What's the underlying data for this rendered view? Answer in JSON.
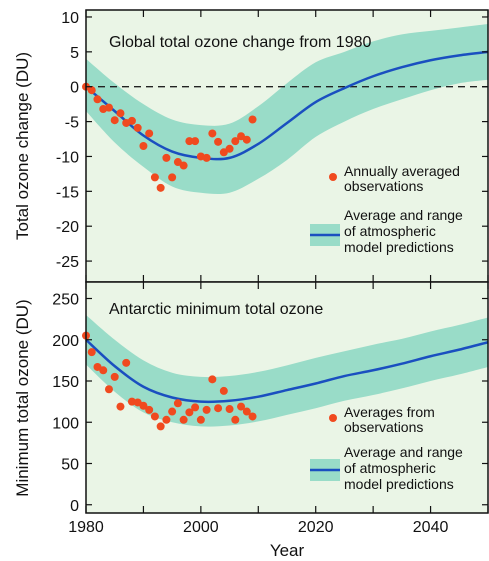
{
  "colors": {
    "background": "#eaf5e6",
    "band": "#99dcc8",
    "model_line": "#1a4fc0",
    "observations": "#f04a1f",
    "zero_line": "#222222"
  },
  "shared_axis": {
    "xlabel": "Year",
    "xlim": [
      1980,
      2050
    ],
    "xticks": [
      "1980",
      "2000",
      "2020",
      "2040"
    ]
  },
  "chart_data": [
    {
      "type": "scatter",
      "title": "Global total ozone change from 1980",
      "ylabel": "Total ozone change (DU)",
      "ylim": [
        -28,
        11
      ],
      "yticks": [
        "10",
        "5",
        "0",
        "-5",
        "-10",
        "-15",
        "-20",
        "-25"
      ],
      "zero_line": true,
      "legend": {
        "observations_label_line1": "Annually averaged",
        "observations_label_line2": "observations",
        "model_label_line1": "Average and range",
        "model_label_line2": "of atmospheric",
        "model_label_line3": "model predictions"
      },
      "series": [
        {
          "name": "Annually averaged observations",
          "x": [
            1980,
            1981,
            1982,
            1983,
            1984,
            1985,
            1986,
            1987,
            1988,
            1989,
            1990,
            1991,
            1992,
            1993,
            1994,
            1995,
            1996,
            1997,
            1998,
            1999,
            2000,
            2001,
            2002,
            2003,
            2004,
            2005,
            2006,
            2007,
            2008,
            2009
          ],
          "y": [
            0,
            -0.5,
            -1.8,
            -3.2,
            -3,
            -4.8,
            -3.8,
            -5.2,
            -4.9,
            -5.9,
            -8.5,
            -6.7,
            -13,
            -14.5,
            -10.2,
            -13,
            -10.8,
            -11.3,
            -7.8,
            -7.8,
            -10,
            -10.2,
            -6.7,
            -7.9,
            -9.4,
            -8.9,
            -7.8,
            -7.1,
            -7.6,
            -4.7
          ]
        },
        {
          "name": "Average and range of atmospheric model predictions",
          "x": [
            1980,
            1985,
            1990,
            1995,
            2000,
            2005,
            2010,
            2015,
            2020,
            2025,
            2030,
            2035,
            2040,
            2045,
            2050
          ],
          "y": [
            0,
            -3.5,
            -7,
            -9.3,
            -10.2,
            -10.2,
            -8.2,
            -5.2,
            -2.2,
            -0.2,
            1.5,
            2.8,
            3.8,
            4.5,
            5
          ],
          "upper": [
            4,
            0.5,
            -2.5,
            -4.7,
            -5.5,
            -5.3,
            -2.8,
            0.5,
            3.5,
            5,
            6.5,
            7.5,
            8,
            8.5,
            9
          ],
          "lower": [
            -3.5,
            -8,
            -11.5,
            -14.3,
            -15.2,
            -15.2,
            -13.2,
            -10.5,
            -7.2,
            -5,
            -3.2,
            -1.8,
            -0.5,
            0.5,
            1
          ]
        }
      ]
    },
    {
      "type": "scatter",
      "title": "Antarctic minimum total ozone",
      "ylabel": "Minimum total ozone (DU)",
      "ylim": [
        -10,
        270
      ],
      "yticks": [
        "250",
        "200",
        "150",
        "100",
        "50",
        "0"
      ],
      "zero_line": false,
      "legend": {
        "observations_label_line1": "Averages from",
        "observations_label_line2": "observations",
        "model_label_line1": "Average and range",
        "model_label_line2": "of atmospheric",
        "model_label_line3": "model predictions"
      },
      "series": [
        {
          "name": "Averages from observations",
          "x": [
            1980,
            1981,
            1982,
            1983,
            1984,
            1985,
            1986,
            1987,
            1988,
            1989,
            1990,
            1991,
            1992,
            1993,
            1994,
            1995,
            1996,
            1997,
            1998,
            1999,
            2000,
            2001,
            2002,
            2003,
            2004,
            2005,
            2006,
            2007,
            2008,
            2009
          ],
          "y": [
            205,
            185,
            167,
            163,
            140,
            155,
            119,
            172,
            125,
            124,
            120,
            115,
            107,
            95,
            103,
            113,
            123,
            103,
            112,
            118,
            103,
            115,
            152,
            117,
            138,
            116,
            103,
            119,
            113,
            107
          ]
        },
        {
          "name": "Average and range of atmospheric model predictions",
          "x": [
            1980,
            1985,
            1990,
            1995,
            2000,
            2005,
            2010,
            2015,
            2020,
            2025,
            2030,
            2035,
            2040,
            2045,
            2050
          ],
          "y": [
            200,
            168,
            143,
            130,
            125,
            126,
            131,
            139,
            147,
            156,
            163,
            171,
            180,
            188,
            197
          ],
          "upper": [
            230,
            200,
            175,
            160,
            155,
            156,
            161,
            169,
            178,
            186,
            194,
            201,
            210,
            218,
            227
          ],
          "lower": [
            170,
            137,
            112,
            100,
            95,
            96,
            101,
            109,
            117,
            126,
            133,
            141,
            150,
            158,
            167
          ]
        }
      ]
    }
  ]
}
